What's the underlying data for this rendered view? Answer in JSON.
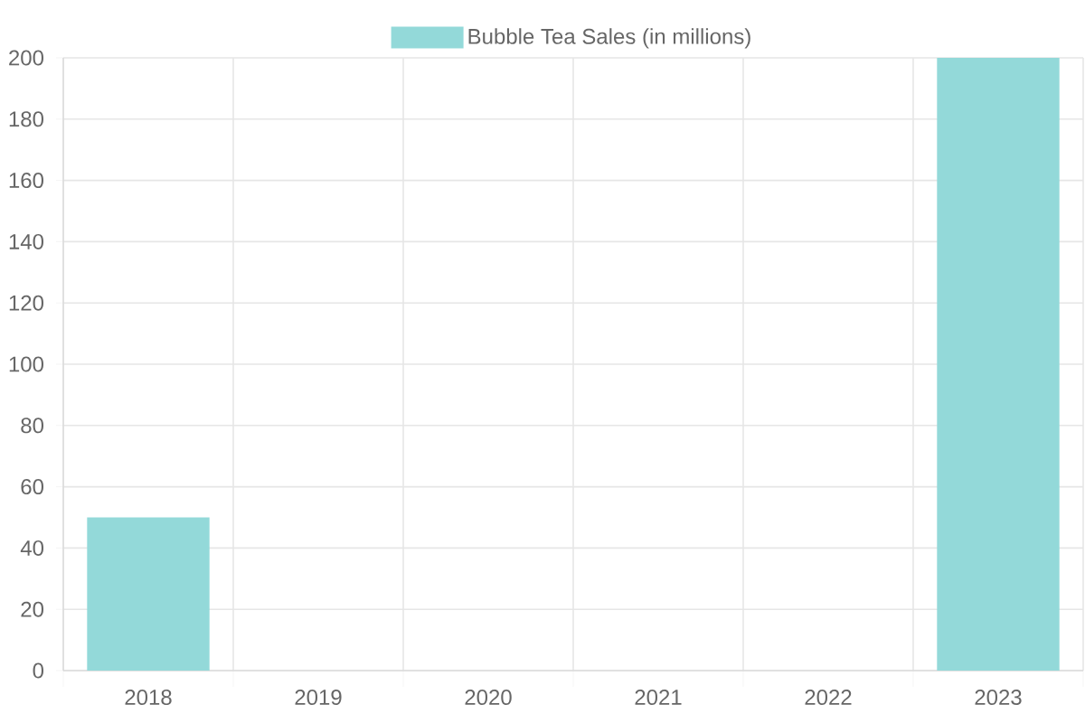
{
  "chart_data": {
    "type": "bar",
    "categories": [
      "2018",
      "2019",
      "2020",
      "2021",
      "2022",
      "2023"
    ],
    "series": [
      {
        "name": "Bubble Tea Sales (in millions)",
        "color": "#93d9d9",
        "values": [
          50,
          null,
          null,
          null,
          null,
          200
        ]
      }
    ],
    "ylim": [
      0,
      200
    ],
    "yticks": [
      0,
      20,
      40,
      60,
      80,
      100,
      120,
      140,
      160,
      180,
      200
    ],
    "grid": true,
    "legend": "top"
  }
}
